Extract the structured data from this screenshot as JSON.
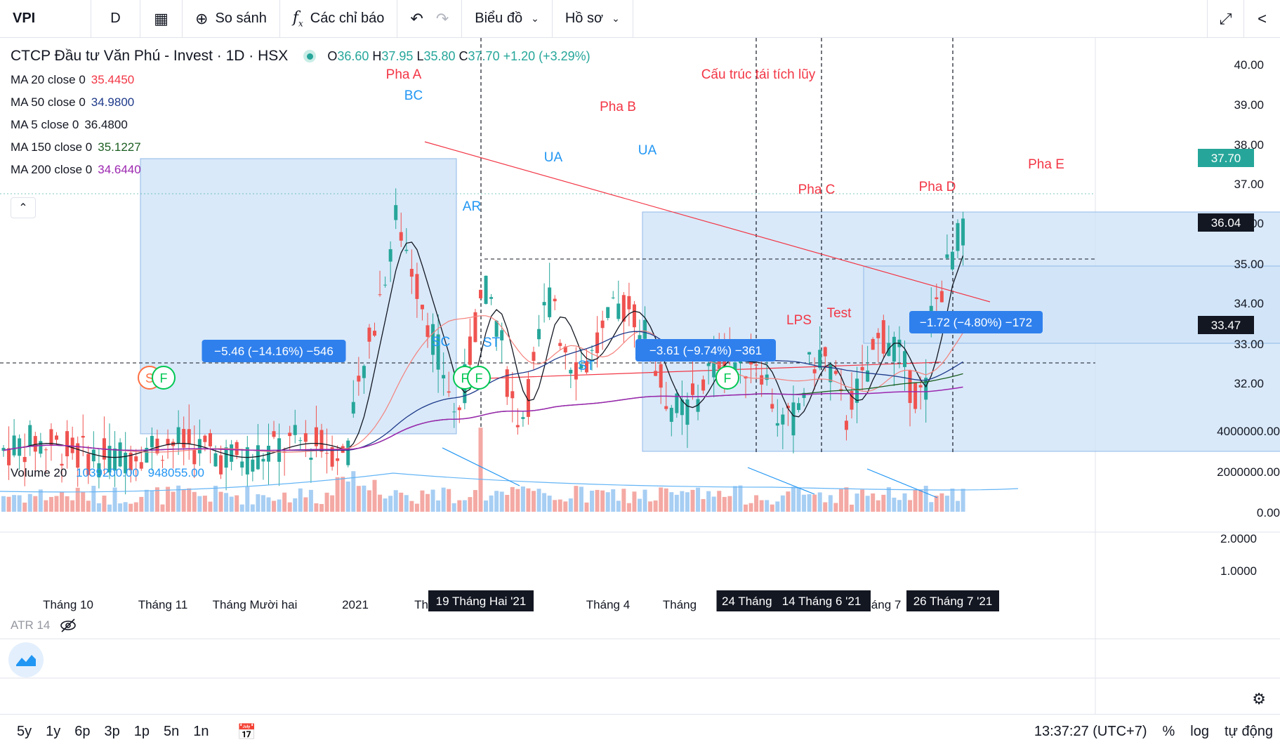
{
  "toolbar": {
    "symbol": "VPI",
    "interval": "D",
    "compare_label": "So sánh",
    "indicators_label": "Các chỉ báo",
    "chart_menu_label": "Biểu đồ",
    "profile_menu_label": "Hồ sơ"
  },
  "header": {
    "title": "CTCP Đầu tư Văn Phú - Invest · 1D · HSX",
    "ohlc": {
      "o_label": "O",
      "o": "36.60",
      "h_label": "H",
      "h": "37.95",
      "l_label": "L",
      "l": "35.80",
      "c_label": "C",
      "c": "37.70",
      "change": "+1.20 (+3.29%)"
    }
  },
  "ma_legend": [
    {
      "label": "MA 20 close 0",
      "value": "35.4450",
      "color": "#f23645"
    },
    {
      "label": "MA 50 close 0",
      "value": "34.9800",
      "color": "#1e3a8a"
    },
    {
      "label": "MA 5 close 0",
      "value": "36.4800",
      "color": "#131722"
    },
    {
      "label": "MA 150 close 0",
      "value": "35.1227",
      "color": "#1b5e20"
    },
    {
      "label": "MA 200 close 0",
      "value": "34.6440",
      "color": "#9c27b0"
    }
  ],
  "volume_legend": {
    "label": "Volume 20",
    "v1": "1039200.00",
    "v2": "948055.00"
  },
  "atr_legend": {
    "label": "ATR 14"
  },
  "colors": {
    "up": "#26a69a",
    "down": "#ef5350",
    "vol_up": "#a7cef3",
    "vol_down": "#f4a9a4",
    "box": "#cfe3f7",
    "badge": "#2962ff"
  },
  "chart_data": {
    "type": "candlestick",
    "price_axis": [
      "40.00",
      "39.00",
      "38.00",
      "37.00",
      "36.00",
      "35.00",
      "34.00",
      "33.00",
      "32.00"
    ],
    "price_range": [
      31.8,
      40.8
    ],
    "last_price": "37.70",
    "price_labels": [
      "36.04",
      "33.47"
    ],
    "volume_axis": [
      "4000000.00",
      "2000000.00",
      "0.00"
    ],
    "atr_axis": [
      "2.0000",
      "1.0000"
    ],
    "x_labels": [
      "Tháng 10",
      "Tháng 11",
      "Tháng Mười hai",
      "2021",
      "Th",
      "Tháng 4",
      "Tháng",
      "tháng 7"
    ],
    "date_badges": [
      "19 Tháng Hai '21",
      "24 Tháng Nă",
      "14 Tháng 6 '21",
      "26 Tháng 7 '21"
    ],
    "annotations": [
      {
        "text": "Pha A",
        "kind": "red"
      },
      {
        "text": "BC",
        "kind": "blue"
      },
      {
        "text": "Pha B",
        "kind": "red"
      },
      {
        "text": "Cấu trúc tái tích lũy",
        "kind": "red"
      },
      {
        "text": "UA",
        "kind": "blue"
      },
      {
        "text": "UA",
        "kind": "blue"
      },
      {
        "text": "AR",
        "kind": "blue"
      },
      {
        "text": "SC",
        "kind": "blue"
      },
      {
        "text": "ST",
        "kind": "blue"
      },
      {
        "text": "ST",
        "kind": "blue"
      },
      {
        "text": "Pha C",
        "kind": "red"
      },
      {
        "text": "Pha D",
        "kind": "red"
      },
      {
        "text": "Pha E",
        "kind": "red"
      },
      {
        "text": "LPS",
        "kind": "red"
      },
      {
        "text": "Test",
        "kind": "red"
      }
    ],
    "measure_labels": [
      "−5.46 (−14.16%) −546",
      "−3.61 (−9.74%) −361",
      "−1.72 (−4.80%) −172"
    ],
    "event_markers": [
      "S",
      "F",
      "F",
      "F",
      "F"
    ]
  },
  "bottom": {
    "ranges": [
      "5y",
      "1y",
      "6p",
      "3p",
      "1p",
      "5n",
      "1n"
    ],
    "time": "13:37:27 (UTC+7)",
    "percent": "%",
    "log": "log",
    "auto": "tự động"
  }
}
